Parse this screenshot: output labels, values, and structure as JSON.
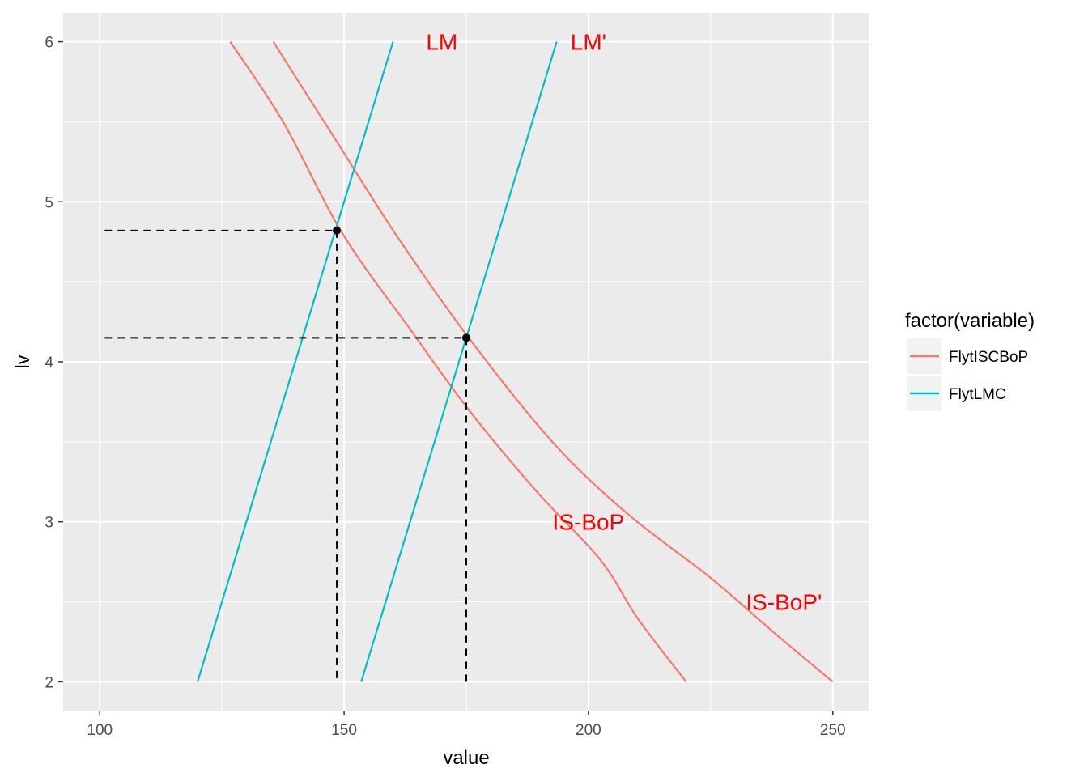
{
  "chart_data": {
    "type": "line",
    "xlabel": "value",
    "ylabel": "lv",
    "xlim": [
      92.5,
      257.5
    ],
    "ylim": [
      1.82,
      6.18
    ],
    "x_ticks": [
      100,
      150,
      200,
      250
    ],
    "y_ticks": [
      2,
      3,
      4,
      5,
      6
    ],
    "grid": true,
    "legend": {
      "title": "factor(variable)",
      "position": "right",
      "entries": [
        {
          "label": "FlytISCBoP",
          "color": "#F8766D"
        },
        {
          "label": "FlytLMC",
          "color": "#00BFC4"
        }
      ]
    },
    "series": [
      {
        "legend_entry": 0,
        "color": "#F8766D",
        "points": [
          [
            126.7,
            6.0
          ],
          [
            137.5,
            5.5
          ],
          [
            149.7,
            4.8
          ],
          [
            163.6,
            4.2
          ],
          [
            175.5,
            3.7
          ],
          [
            189.1,
            3.2
          ],
          [
            202.5,
            2.76
          ],
          [
            210.0,
            2.4
          ],
          [
            220.0,
            2.0
          ]
        ]
      },
      {
        "legend_entry": 0,
        "color": "#F8766D",
        "points": [
          [
            135.5,
            6.0
          ],
          [
            148.0,
            5.4
          ],
          [
            160.5,
            4.8
          ],
          [
            175.5,
            4.15
          ],
          [
            192.6,
            3.5
          ],
          [
            208.0,
            3.05
          ],
          [
            225.0,
            2.65
          ],
          [
            237.5,
            2.32
          ],
          [
            250.0,
            2.0
          ]
        ]
      },
      {
        "legend_entry": 1,
        "color": "#00BFC4",
        "points": [
          [
            120.0,
            2.0
          ],
          [
            160.0,
            6.0
          ]
        ]
      },
      {
        "legend_entry": 1,
        "color": "#00BFC4",
        "points": [
          [
            153.5,
            2.0
          ],
          [
            193.5,
            6.0
          ]
        ]
      }
    ],
    "equilibria": [
      {
        "x": 148.5,
        "y": 4.82
      },
      {
        "x": 175.0,
        "y": 4.15
      }
    ],
    "guide_start_x": 101.0,
    "annotations": [
      {
        "text": "LM",
        "x": 170.0,
        "y": 6.0,
        "color": "#FF0000"
      },
      {
        "text": "LM'",
        "x": 200.0,
        "y": 6.0,
        "color": "#FF0000"
      },
      {
        "text": "IS-BoP",
        "x": 200.0,
        "y": 3.0,
        "color": "#FF0000"
      },
      {
        "text": "IS-BoP'",
        "x": 240.0,
        "y": 2.5,
        "color": "#FF0000"
      }
    ]
  }
}
